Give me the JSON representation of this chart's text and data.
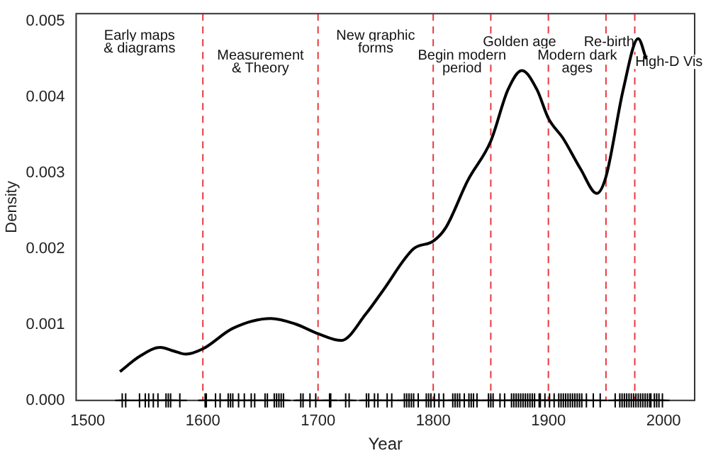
{
  "chart_data": {
    "type": "line",
    "xlabel": "Year",
    "ylabel": "Density",
    "xlim": [
      1490,
      2027
    ],
    "ylim": [
      0,
      0.0051
    ],
    "xticks": [
      1500,
      1600,
      1700,
      1800,
      1900,
      2000
    ],
    "yticks": [
      {
        "value": 0,
        "label": "0.000"
      },
      {
        "value": 0.001,
        "label": "0.001"
      },
      {
        "value": 0.002,
        "label": "0.002"
      },
      {
        "value": 0.003,
        "label": "0.003"
      },
      {
        "value": 0.004,
        "label": "0.004"
      },
      {
        "value": 0.005,
        "label": "0.005"
      }
    ],
    "grid": false,
    "legend": false,
    "line_style": "solid",
    "marker": "none",
    "series": [
      {
        "type": "line",
        "color": "#000000",
        "x": [
          1528,
          1545,
          1563,
          1575,
          1585,
          1600,
          1626,
          1659,
          1680,
          1700,
          1720,
          1742,
          1756,
          1783,
          1800,
          1811,
          1830,
          1850,
          1865,
          1877,
          1890,
          1900,
          1913,
          1928,
          1942,
          1950,
          1965,
          1978,
          1985
        ],
        "values": [
          0.00038,
          0.00058,
          0.0007,
          0.00065,
          0.00061,
          0.00068,
          0.00095,
          0.00108,
          0.00101,
          0.00088,
          0.00079,
          0.00115,
          0.00144,
          0.002,
          0.0021,
          0.00228,
          0.0029,
          0.00342,
          0.0041,
          0.00435,
          0.0041,
          0.00372,
          0.00345,
          0.00305,
          0.00273,
          0.00295,
          0.0041,
          0.00477,
          0.0045
        ]
      },
      {
        "type": "scatter",
        "marker": "cross",
        "color": "#000000",
        "x": [
          1530,
          1533,
          1545,
          1550,
          1553,
          1557,
          1561,
          1568,
          1570,
          1572,
          1580,
          1602,
          1603,
          1611,
          1615,
          1622,
          1624,
          1626,
          1631,
          1636,
          1642,
          1645,
          1654,
          1656,
          1662,
          1664,
          1666,
          1668,
          1670,
          1685,
          1687,
          1693,
          1698,
          1710,
          1711,
          1724,
          1727,
          1742,
          1744,
          1749,
          1752,
          1760,
          1764,
          1775,
          1777,
          1779,
          1781,
          1783,
          1787,
          1794,
          1796,
          1798,
          1801,
          1805,
          1809,
          1817,
          1819,
          1821,
          1823,
          1827,
          1831,
          1833,
          1835,
          1838,
          1848,
          1850,
          1852,
          1858,
          1862,
          1868,
          1870,
          1872,
          1874,
          1876,
          1878,
          1880,
          1882,
          1884,
          1886,
          1888,
          1892,
          1893,
          1897,
          1901,
          1905,
          1909,
          1911,
          1913,
          1915,
          1917,
          1919,
          1921,
          1923,
          1925,
          1927,
          1929,
          1933,
          1939,
          1945,
          1958,
          1962,
          1964,
          1966,
          1968,
          1970,
          1972,
          1974,
          1976,
          1978,
          1980,
          1982,
          1984,
          1986,
          1988,
          1989,
          1992,
          1994,
          1996,
          1999
        ],
        "values": [
          0,
          0,
          0,
          0,
          0,
          0,
          0,
          0,
          0,
          0,
          0,
          0,
          0,
          0,
          0,
          0,
          0,
          0,
          0,
          0,
          0,
          0,
          0,
          0,
          0,
          0,
          0,
          0,
          0,
          0,
          0,
          0,
          0,
          0,
          0,
          0,
          0,
          0,
          0,
          0,
          0,
          0,
          0,
          0,
          0,
          0,
          0,
          0,
          0,
          0,
          0,
          0,
          0,
          0,
          0,
          0,
          0,
          0,
          0,
          0,
          0,
          0,
          0,
          0,
          0,
          0,
          0,
          0,
          0,
          0,
          0,
          0,
          0,
          0,
          0,
          0,
          0,
          0,
          0,
          0,
          0,
          0,
          0,
          0,
          0,
          0,
          0,
          0,
          0,
          0,
          0,
          0,
          0,
          0,
          0,
          0,
          0,
          0,
          0,
          0,
          0,
          0,
          0,
          0,
          0,
          0,
          0,
          0,
          0,
          0,
          0,
          0,
          0,
          0,
          0,
          0,
          0,
          0,
          0
        ]
      }
    ],
    "ref_lines": [
      {
        "axis": "x",
        "value": 1600,
        "color": "#e8393f",
        "line_style": "dashed"
      },
      {
        "axis": "x",
        "value": 1700,
        "color": "#e8393f",
        "line_style": "dashed"
      },
      {
        "axis": "x",
        "value": 1800,
        "color": "#e8393f",
        "line_style": "dashed"
      },
      {
        "axis": "x",
        "value": 1850,
        "color": "#e8393f",
        "line_style": "dashed"
      },
      {
        "axis": "x",
        "value": 1900,
        "color": "#e8393f",
        "line_style": "dashed"
      },
      {
        "axis": "x",
        "value": 1950,
        "color": "#e8393f",
        "line_style": "dashed"
      },
      {
        "axis": "x",
        "value": 1975,
        "color": "#e8393f",
        "line_style": "dashed"
      }
    ],
    "annotations": [
      "Early maps\n& diagrams",
      "Measurement\n& Theory",
      "New graphic\nforms",
      "Begin modern\nperiod",
      "Golden age",
      "Modern dark\nages",
      "Re-birth",
      "High-D Vis"
    ]
  }
}
